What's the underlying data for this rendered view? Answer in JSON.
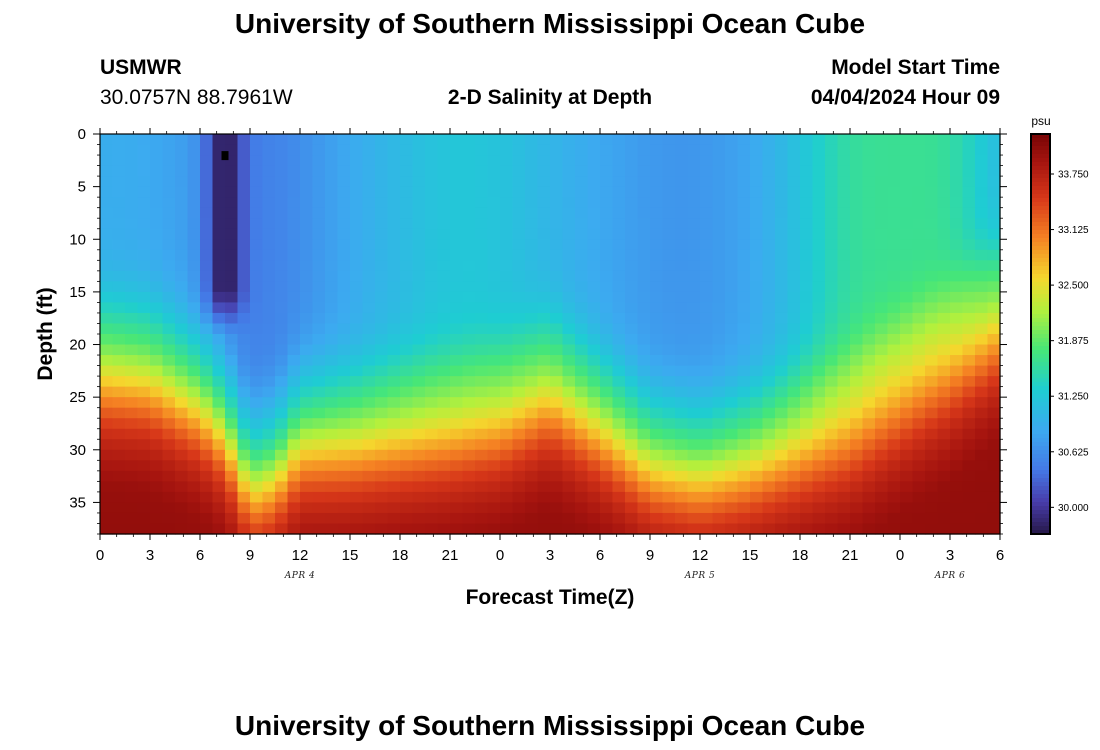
{
  "header": {
    "title_top": "University of Southern Mississippi Ocean Cube",
    "station_id": "USMWR",
    "coordinates": "30.0757N  88.7961W",
    "plot_title": "2-D Salinity at Depth",
    "model_start_label": "Model Start Time",
    "model_start_value": "04/04/2024 Hour 09",
    "title_bottom": "University of Southern Mississippi Ocean Cube"
  },
  "chart_data": {
    "type": "heatmap",
    "title": "2-D Salinity at Depth",
    "xlabel": "Forecast Time(Z)",
    "ylabel": "Depth (ft)",
    "x_ticks": [
      "0",
      "3",
      "6",
      "9",
      "12",
      "15",
      "18",
      "21",
      "0",
      "3",
      "6",
      "9",
      "12",
      "15",
      "18",
      "21",
      "0",
      "3",
      "6"
    ],
    "x_dates": [
      {
        "label": "APR 4",
        "hour_index": 12
      },
      {
        "label": "APR 5",
        "hour_index": 36
      },
      {
        "label": "APR 6",
        "hour_index": 51
      }
    ],
    "xlim_hours": [
      0,
      54
    ],
    "y_ticks": [
      "0",
      "5",
      "10",
      "15",
      "20",
      "25",
      "30",
      "35"
    ],
    "ylim": [
      0,
      38
    ],
    "colorbar": {
      "unit": "psu",
      "min": 29.7,
      "max": 34.2,
      "ticks": [
        "33.750",
        "33.125",
        "32.500",
        "31.875",
        "31.250",
        "30.625",
        "30.000"
      ]
    },
    "halocline_depth_by_hour": [
      [
        0,
        22.5
      ],
      [
        3,
        23
      ],
      [
        6,
        25.5
      ],
      [
        7.5,
        28
      ],
      [
        9,
        33
      ],
      [
        10.5,
        32
      ],
      [
        12,
        29
      ],
      [
        15,
        29
      ],
      [
        18,
        28.5
      ],
      [
        21,
        28
      ],
      [
        24,
        27
      ],
      [
        27,
        24.5
      ],
      [
        30,
        27.5
      ],
      [
        33,
        31
      ],
      [
        36,
        32
      ],
      [
        39,
        31
      ],
      [
        42,
        29.5
      ],
      [
        45,
        28
      ],
      [
        48,
        25
      ],
      [
        51,
        22
      ],
      [
        54,
        18
      ]
    ],
    "surface_notes": "Minimum salinity (dark purple) column near hour 7.5 from 0 to 15 ft; highest salinity (dark red) below 30 ft."
  }
}
